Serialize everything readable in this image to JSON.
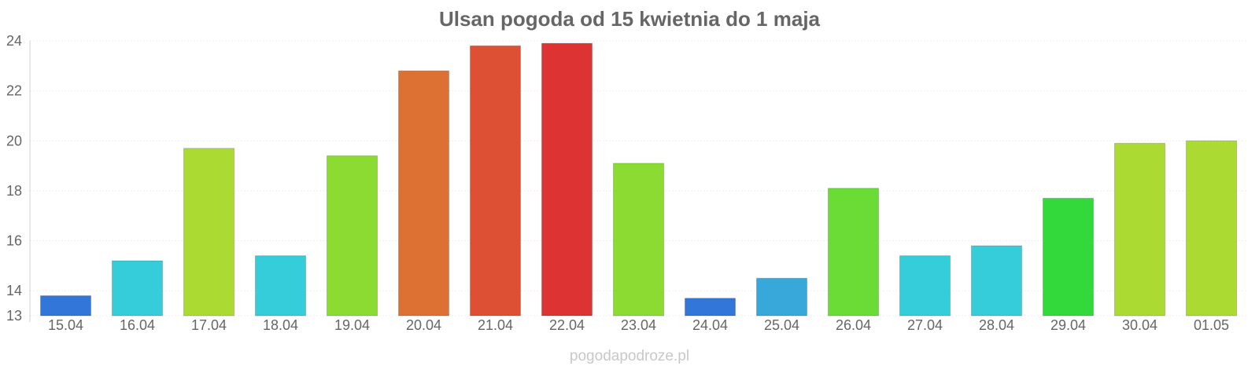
{
  "chart_data": {
    "type": "bar",
    "title": "Ulsan pogoda od 15 kwietnia do 1 maja",
    "xlabel": "",
    "ylabel": "",
    "categories": [
      "15.04",
      "16.04",
      "17.04",
      "18.04",
      "19.04",
      "20.04",
      "21.04",
      "22.04",
      "23.04",
      "24.04",
      "25.04",
      "26.04",
      "27.04",
      "28.04",
      "29.04",
      "30.04",
      "01.05"
    ],
    "values": [
      13.8,
      15.2,
      19.7,
      15.4,
      19.4,
      22.8,
      23.8,
      23.9,
      19.1,
      13.7,
      14.5,
      18.1,
      15.4,
      15.8,
      17.7,
      19.9,
      20.0
    ],
    "colors": [
      "#3276d9",
      "#35cdd9",
      "#abdb33",
      "#35cdd9",
      "#8bdb33",
      "#dd7033",
      "#dd5033",
      "#dd3333",
      "#8bdb33",
      "#3276d9",
      "#37a8d9",
      "#6bdb36",
      "#35cdd9",
      "#35cdd9",
      "#33d93b",
      "#abdb33",
      "#abdb33"
    ],
    "ylim": [
      13,
      24
    ],
    "yticks": [
      13,
      14,
      16,
      18,
      20,
      22,
      24
    ],
    "grid": true,
    "legend": "none"
  },
  "footer": {
    "source": "pogodapodroze.pl"
  }
}
